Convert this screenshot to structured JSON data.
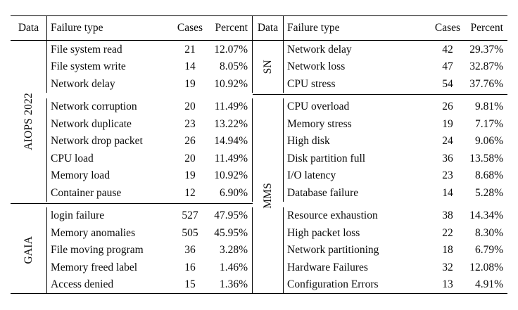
{
  "page": {
    "background": "#ffffff",
    "text_color": "#0a0a0a",
    "rule_color": "#000000"
  },
  "table": {
    "column_headers": [
      "Data",
      "Failure type",
      "Cases",
      "Percent"
    ],
    "halves": [
      {
        "side": "left",
        "sections": [
          {
            "label": "AIOPS 2022",
            "rows": [
              [
                "File system read",
                "21",
                "12.07%"
              ],
              [
                "File system write",
                "14",
                "8.05%"
              ],
              [
                "Network delay",
                "19",
                "10.92%"
              ],
              [
                "Network corruption",
                "20",
                "11.49%"
              ],
              [
                "Network duplicate",
                "23",
                "13.22%"
              ],
              [
                "Network drop packet",
                "26",
                "14.94%"
              ],
              [
                "CPU load",
                "20",
                "11.49%"
              ],
              [
                "Memory load",
                "19",
                "10.92%"
              ],
              [
                "Container pause",
                "12",
                "6.90%"
              ]
            ]
          },
          {
            "label": "GAIA",
            "rows": [
              [
                "login failure",
                "527",
                "47.95%"
              ],
              [
                "Memory anomalies",
                "505",
                "45.95%"
              ],
              [
                "File moving program",
                "36",
                "3.28%"
              ],
              [
                "Memory freed label",
                "16",
                "1.46%"
              ],
              [
                "Access denied",
                "15",
                "1.36%"
              ]
            ]
          }
        ]
      },
      {
        "side": "right",
        "sections": [
          {
            "label": "SN",
            "rows": [
              [
                "Network delay",
                "42",
                "29.37%"
              ],
              [
                "Network loss",
                "47",
                "32.87%"
              ],
              [
                "CPU stress",
                "54",
                "37.76%"
              ]
            ]
          },
          {
            "label": "MMS",
            "rows": [
              [
                "CPU overload",
                "26",
                "9.81%"
              ],
              [
                "Memory stress",
                "19",
                "7.17%"
              ],
              [
                "High disk",
                "24",
                "9.06%"
              ],
              [
                "Disk partition full",
                "36",
                "13.58%"
              ],
              [
                "I/O latency",
                "23",
                "8.68%"
              ],
              [
                "Database failure",
                "14",
                "5.28%"
              ],
              [
                "Resource exhaustion",
                "38",
                "14.34%"
              ],
              [
                "High packet loss",
                "22",
                "8.30%"
              ],
              [
                "Network partitioning",
                "18",
                "6.79%"
              ],
              [
                "Hardware Failures",
                "32",
                "12.08%"
              ],
              [
                "Configuration Errors",
                "13",
                "4.91%"
              ]
            ]
          }
        ]
      }
    ]
  }
}
